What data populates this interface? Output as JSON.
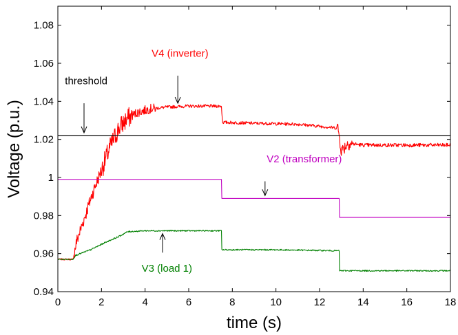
{
  "chart_data": {
    "type": "line",
    "xlabel": "time (s)",
    "ylabel": "Voltage (p.u.)",
    "xlim": [
      0,
      18
    ],
    "ylim": [
      0.94,
      1.09
    ],
    "xticks": [
      0,
      2,
      4,
      6,
      8,
      10,
      12,
      14,
      16,
      18
    ],
    "yticks": [
      0.94,
      0.96,
      0.98,
      1,
      1.02,
      1.04,
      1.06,
      1.08
    ],
    "ytick_labels": [
      "0.94",
      "0.96",
      "0.98",
      "1",
      "1.02",
      "1.04",
      "1.06",
      "1.08"
    ],
    "grid": false,
    "threshold": {
      "y": 1.022,
      "label": "threshold",
      "color": "#000000"
    },
    "series": [
      {
        "name": "V4 (inverter)",
        "color": "#ff0000",
        "noisy": true,
        "points": [
          [
            0,
            0.957
          ],
          [
            0.7,
            0.957
          ],
          [
            0.85,
            0.966
          ],
          [
            1.2,
            0.978
          ],
          [
            1.6,
            0.992
          ],
          [
            2.0,
            1.004
          ],
          [
            2.4,
            1.016
          ],
          [
            2.8,
            1.026
          ],
          [
            3.2,
            1.031
          ],
          [
            3.6,
            1.034
          ],
          [
            4.2,
            1.036
          ],
          [
            5.0,
            1.037
          ],
          [
            6.0,
            1.0375
          ],
          [
            7.0,
            1.0375
          ],
          [
            7.5,
            1.0375
          ],
          [
            7.55,
            1.029
          ],
          [
            9.0,
            1.0285
          ],
          [
            11.0,
            1.028
          ],
          [
            12.8,
            1.026
          ],
          [
            12.85,
            1.026
          ],
          [
            13.0,
            1.014
          ],
          [
            13.3,
            1.018
          ],
          [
            14.0,
            1.017
          ],
          [
            15.0,
            1.017
          ],
          [
            16.0,
            1.017
          ],
          [
            18.0,
            1.017
          ]
        ]
      },
      {
        "name": "V2 (transformer)",
        "color": "#c000c0",
        "noisy": false,
        "points": [
          [
            0,
            0.999
          ],
          [
            7.5,
            0.999
          ],
          [
            7.52,
            0.989
          ],
          [
            12.9,
            0.989
          ],
          [
            12.92,
            0.979
          ],
          [
            18.0,
            0.979
          ]
        ]
      },
      {
        "name": "V3 (load 1)",
        "color": "#008000",
        "noisy": true,
        "points": [
          [
            0,
            0.957
          ],
          [
            0.7,
            0.957
          ],
          [
            0.8,
            0.959
          ],
          [
            1.5,
            0.962
          ],
          [
            2.2,
            0.966
          ],
          [
            2.8,
            0.969
          ],
          [
            3.2,
            0.9715
          ],
          [
            4.0,
            0.972
          ],
          [
            5.5,
            0.972
          ],
          [
            7.5,
            0.972
          ],
          [
            7.52,
            0.962
          ],
          [
            10.0,
            0.962
          ],
          [
            12.9,
            0.9615
          ],
          [
            12.92,
            0.951
          ],
          [
            18.0,
            0.951
          ]
        ]
      }
    ],
    "annotations": [
      {
        "text": "V4 (inverter)",
        "color": "#ff0000",
        "text_at": [
          5.6,
          1.0635
        ],
        "arrow_from": [
          5.5,
          1.0535
        ],
        "arrow_to": [
          5.5,
          1.039
        ]
      },
      {
        "text": "threshold",
        "color": "#000000",
        "text_at": [
          1.3,
          1.049
        ],
        "arrow_from": [
          1.2,
          1.039
        ],
        "arrow_to": [
          1.2,
          1.0235
        ]
      },
      {
        "text": "V2 (transformer)",
        "color": "#c000c0",
        "text_at": [
          11.3,
          1.008
        ],
        "arrow_from": [
          9.5,
          0.998
        ],
        "arrow_to": [
          9.5,
          0.9905
        ]
      },
      {
        "text": "V3 (load 1)",
        "color": "#008000",
        "text_at": [
          5.0,
          0.9505
        ],
        "arrow_from": [
          4.8,
          0.9605
        ],
        "arrow_to": [
          4.8,
          0.9705
        ]
      }
    ]
  }
}
